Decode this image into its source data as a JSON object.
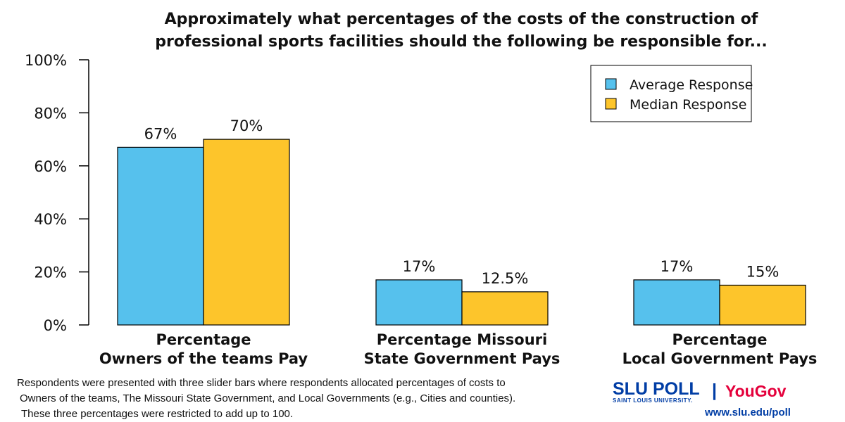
{
  "chart_data": {
    "type": "bar",
    "title": "Approximately what percentages of the costs of the construction of professional sports facilities should the following be responsible for...",
    "title_lines": [
      "Approximately what percentages of the costs of the construction of",
      "professional sports facilities should the following be responsible for..."
    ],
    "categories": [
      "Percentage Owners of the teams Pay",
      "Percentage Missouri State Government Pays",
      "Percentage Local Government Pays"
    ],
    "category_lines": [
      [
        "Percentage",
        "Owners of the teams Pay"
      ],
      [
        "Percentage Missouri",
        "State Government Pays"
      ],
      [
        "Percentage",
        "Local Government Pays"
      ]
    ],
    "series": [
      {
        "name": "Average Response",
        "color": "#56C1ED",
        "values": [
          67,
          17,
          17
        ],
        "labels": [
          "67%",
          "17%",
          "17%"
        ]
      },
      {
        "name": "Median Response",
        "color": "#FDC52B",
        "values": [
          70,
          12.5,
          15
        ],
        "labels": [
          "70%",
          "12.5%",
          "15%"
        ]
      }
    ],
    "ylim": [
      0,
      100
    ],
    "yticks": [
      0,
      20,
      40,
      60,
      80,
      100
    ],
    "ytick_labels": [
      "0%",
      "20%",
      "40%",
      "60%",
      "80%",
      "100%"
    ],
    "xlabel": "",
    "ylabel": "",
    "grid": false,
    "legend_position": "top-right"
  },
  "footnote": [
    "Respondents were presented with three slider bars where respondents allocated percentages of costs to",
    "Owners of the teams, The Missouri State Government, and Local Governments (e.g., Cities and counties).",
    "These three percentages were restricted to add up to 100."
  ],
  "branding": {
    "slu_poll": "SLU POLL",
    "slu_sub": "SAINT LOUIS UNIVERSITY.",
    "separator": "|",
    "yougov": "YouGov",
    "url": "www.slu.edu/poll"
  }
}
